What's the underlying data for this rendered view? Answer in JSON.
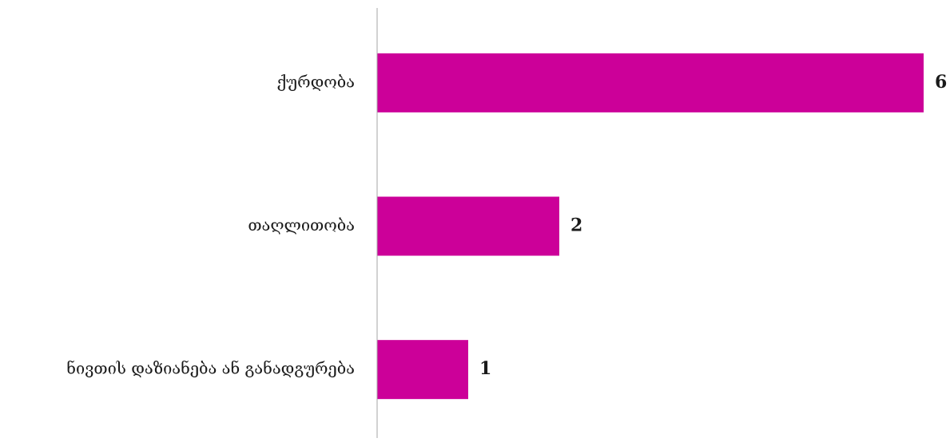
{
  "chart_data": {
    "type": "bar",
    "orientation": "horizontal",
    "categories": [
      "ქურდობა",
      "თაღლითობა",
      "ნივთის დაზიანება ან განადგურება"
    ],
    "values": [
      6,
      2,
      1
    ],
    "title": "",
    "xlabel": "",
    "ylabel": "",
    "xlim": [
      0,
      6
    ],
    "grid": false,
    "legend": "none",
    "bar_color": "#CC0099",
    "axis_color": "#a6a6a6",
    "data_labels": true
  }
}
